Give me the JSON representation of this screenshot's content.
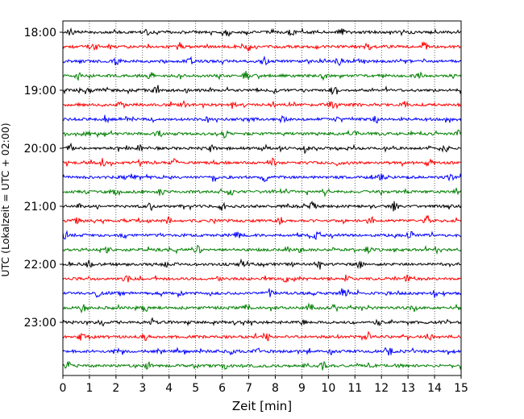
{
  "chart_data": {
    "type": "line",
    "title": "",
    "xlabel": "Zeit  [min]",
    "ylabel": "UTC (Lokalzeit = UTC + 02:00)",
    "xlim": [
      0,
      15
    ],
    "x_ticks": [
      "0",
      "1",
      "2",
      "3",
      "4",
      "5",
      "6",
      "7",
      "8",
      "9",
      "10",
      "11",
      "12",
      "13",
      "14",
      "15"
    ],
    "y_tick_labels": [
      "18:00",
      "19:00",
      "20:00",
      "21:00",
      "22:00",
      "23:00"
    ],
    "grid": {
      "x": "dotted vertical at each minute",
      "y": false
    },
    "trace_colors": [
      "#000000",
      "#ff0000",
      "#0000ff",
      "#008000"
    ],
    "traces": [
      {
        "start": "18:00",
        "color": "#000000",
        "bursts": [
          0.3,
          3.1,
          6.2,
          8.6,
          10.5
        ]
      },
      {
        "start": "18:15",
        "color": "#ff0000",
        "bursts": [
          1.2,
          4.4,
          7.0,
          11.5,
          13.6
        ]
      },
      {
        "start": "18:30",
        "color": "#0000ff",
        "bursts": [
          2.0,
          4.8,
          7.6,
          10.4,
          12.8
        ]
      },
      {
        "start": "18:45",
        "color": "#008000",
        "bursts": [
          0.6,
          3.3,
          6.9,
          9.8,
          13.4
        ]
      },
      {
        "start": "19:00",
        "color": "#000000",
        "bursts": [
          1.0,
          3.5,
          4.6,
          8.0,
          10.2
        ]
      },
      {
        "start": "19:15",
        "color": "#ff0000",
        "bursts": [
          2.2,
          4.5,
          6.4,
          10.1,
          12.9
        ]
      },
      {
        "start": "19:30",
        "color": "#0000ff",
        "bursts": [
          1.6,
          5.4,
          8.3,
          10.4,
          11.8
        ]
      },
      {
        "start": "19:45",
        "color": "#008000",
        "bursts": [
          0.9,
          3.6,
          6.1,
          11.1,
          14.9
        ]
      },
      {
        "start": "20:00",
        "color": "#000000",
        "bursts": [
          0.3,
          2.9,
          5.6,
          9.1,
          14.4
        ]
      },
      {
        "start": "20:15",
        "color": "#ff0000",
        "bursts": [
          1.5,
          4.2,
          7.9,
          10.4,
          13.8
        ]
      },
      {
        "start": "20:30",
        "color": "#0000ff",
        "bursts": [
          2.6,
          5.7,
          7.6,
          12.0,
          14.6
        ]
      },
      {
        "start": "20:45",
        "color": "#008000",
        "bursts": [
          1.9,
          3.7,
          6.3,
          9.9,
          14.8
        ]
      },
      {
        "start": "21:00",
        "color": "#000000",
        "bursts": [
          0.6,
          3.3,
          6.0,
          9.4,
          12.5
        ]
      },
      {
        "start": "21:15",
        "color": "#ff0000",
        "bursts": [
          0.5,
          4.0,
          8.2,
          11.6,
          13.7
        ]
      },
      {
        "start": "21:30",
        "color": "#0000ff",
        "bursts": [
          0.1,
          2.3,
          6.6,
          9.5,
          13.1
        ]
      },
      {
        "start": "21:45",
        "color": "#008000",
        "bursts": [
          1.7,
          5.1,
          8.9,
          11.5,
          14.1
        ]
      },
      {
        "start": "22:00",
        "color": "#000000",
        "bursts": [
          1.0,
          3.8,
          6.7,
          9.6,
          11.2
        ]
      },
      {
        "start": "22:15",
        "color": "#ff0000",
        "bursts": [
          2.4,
          5.9,
          8.4,
          10.7,
          13.0
        ]
      },
      {
        "start": "22:30",
        "color": "#0000ff",
        "bursts": [
          1.3,
          4.4,
          7.8,
          10.6,
          14.0
        ]
      },
      {
        "start": "22:45",
        "color": "#008000",
        "bursts": [
          0.8,
          3.1,
          6.9,
          9.3,
          13.2
        ]
      },
      {
        "start": "23:00",
        "color": "#000000",
        "bursts": [
          1.5,
          3.4,
          5.9,
          9.0,
          11.9
        ]
      },
      {
        "start": "23:15",
        "color": "#ff0000",
        "bursts": [
          0.7,
          3.1,
          7.7,
          11.5,
          13.8
        ]
      },
      {
        "start": "23:30",
        "color": "#0000ff",
        "bursts": [
          2.0,
          6.4,
          7.3,
          10.1,
          12.3
        ]
      },
      {
        "start": "23:45",
        "color": "#008000",
        "bursts": [
          0.2,
          3.2,
          6.1,
          9.8,
          12.6
        ]
      }
    ]
  }
}
